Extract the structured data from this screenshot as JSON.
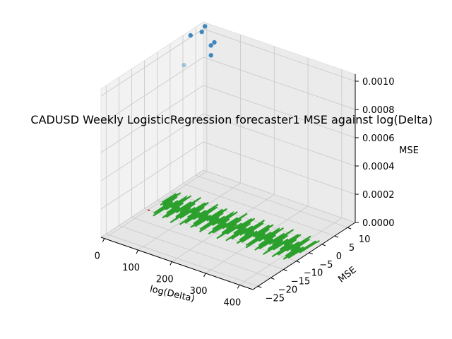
{
  "chart_data": {
    "type": "scatter",
    "projection": "3d",
    "title": "CADUSD Weekly LogisticRegression forecaster1 MSE against log(Delta)",
    "xlabel": "log(Delta)",
    "ylabel": "MSE",
    "zlabel": "MSE",
    "xlim": [
      -10,
      440
    ],
    "ylim": [
      -27,
      13
    ],
    "zlim": [
      0,
      0.00105
    ],
    "x_ticks": [
      "0",
      "100",
      "200",
      "300",
      "400"
    ],
    "y_ticks": [
      "−25",
      "−20",
      "−15",
      "−10",
      "−5",
      "0",
      "5",
      "10"
    ],
    "z_ticks": [
      "0.0000",
      "0.0002",
      "0.0004",
      "0.0006",
      "0.0008",
      "0.0010"
    ],
    "grid": true,
    "colors": {
      "scatter": "#1f77b4",
      "red_mark": "#d62728",
      "green_line": "#2ca02c"
    },
    "series": [
      {
        "type": "scatter3d",
        "points": [
          {
            "x": 2,
            "y": 12.0,
            "z": 0.00104
          },
          {
            "x": 5,
            "y": 6.0,
            "z": 0.00105
          },
          {
            "x": 8,
            "y": 10.0,
            "z": 0.00103
          },
          {
            "x": 20,
            "y": 12.0,
            "z": 0.00092
          },
          {
            "x": 20,
            "y": 12.0,
            "z": 0.00085
          },
          {
            "x": 1,
            "y": 4.0,
            "z": 0.00086
          },
          {
            "x": 30,
            "y": 12.0,
            "z": 0.00095
          }
        ]
      },
      {
        "type": "segment3d",
        "points": [
          {
            "x": 0,
            "y": -10.0,
            "z": 0.0
          },
          {
            "x": 5,
            "y": -10.0,
            "z": 0.0
          }
        ]
      },
      {
        "type": "line3d",
        "x_start": 5,
        "x_end": 425,
        "y_center": -5,
        "y_amplitude": 7,
        "z": 0.0
      }
    ]
  }
}
